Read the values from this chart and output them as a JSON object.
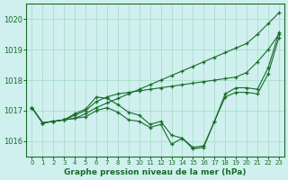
{
  "title": "Graphe pression niveau de la mer (hPa)",
  "background_color": "#cff0ee",
  "grid_color": "#aaddcc",
  "line_color": "#1a6b2a",
  "xlim": [
    -0.5,
    23.5
  ],
  "ylim": [
    1015.5,
    1020.5
  ],
  "yticks": [
    1016,
    1017,
    1018,
    1019,
    1020
  ],
  "xticks": [
    0,
    1,
    2,
    3,
    4,
    5,
    6,
    7,
    8,
    9,
    10,
    11,
    12,
    13,
    14,
    15,
    16,
    17,
    18,
    19,
    20,
    21,
    22,
    23
  ],
  "series": [
    [
      1017.1,
      1016.6,
      1016.65,
      1016.7,
      1016.75,
      1016.9,
      1017.1,
      1017.25,
      1017.4,
      1017.55,
      1017.7,
      1017.85,
      1018.0,
      1018.15,
      1018.3,
      1018.45,
      1018.6,
      1018.75,
      1018.9,
      1019.05,
      1019.2,
      1019.5,
      1019.85,
      1020.2
    ],
    [
      1017.1,
      1016.6,
      1016.65,
      1016.7,
      1016.85,
      1017.0,
      1017.3,
      1017.45,
      1017.55,
      1017.6,
      1017.65,
      1017.7,
      1017.75,
      1017.8,
      1017.85,
      1017.9,
      1017.95,
      1018.0,
      1018.05,
      1018.1,
      1018.25,
      1018.6,
      1019.0,
      1019.5
    ],
    [
      1017.1,
      1016.6,
      1016.65,
      1016.7,
      1016.9,
      1017.05,
      1017.45,
      1017.4,
      1017.2,
      1016.95,
      1016.85,
      1016.55,
      1016.65,
      1016.2,
      1016.1,
      1015.8,
      1015.85,
      1016.65,
      1017.55,
      1017.75,
      1017.75,
      1017.7,
      1018.4,
      1019.55
    ],
    [
      1017.1,
      1016.6,
      1016.65,
      1016.7,
      1016.75,
      1016.8,
      1017.0,
      1017.1,
      1016.95,
      1016.7,
      1016.65,
      1016.45,
      1016.55,
      1015.9,
      1016.1,
      1015.75,
      1015.8,
      1016.65,
      1017.45,
      1017.6,
      1017.6,
      1017.55,
      1018.2,
      1019.4
    ]
  ]
}
